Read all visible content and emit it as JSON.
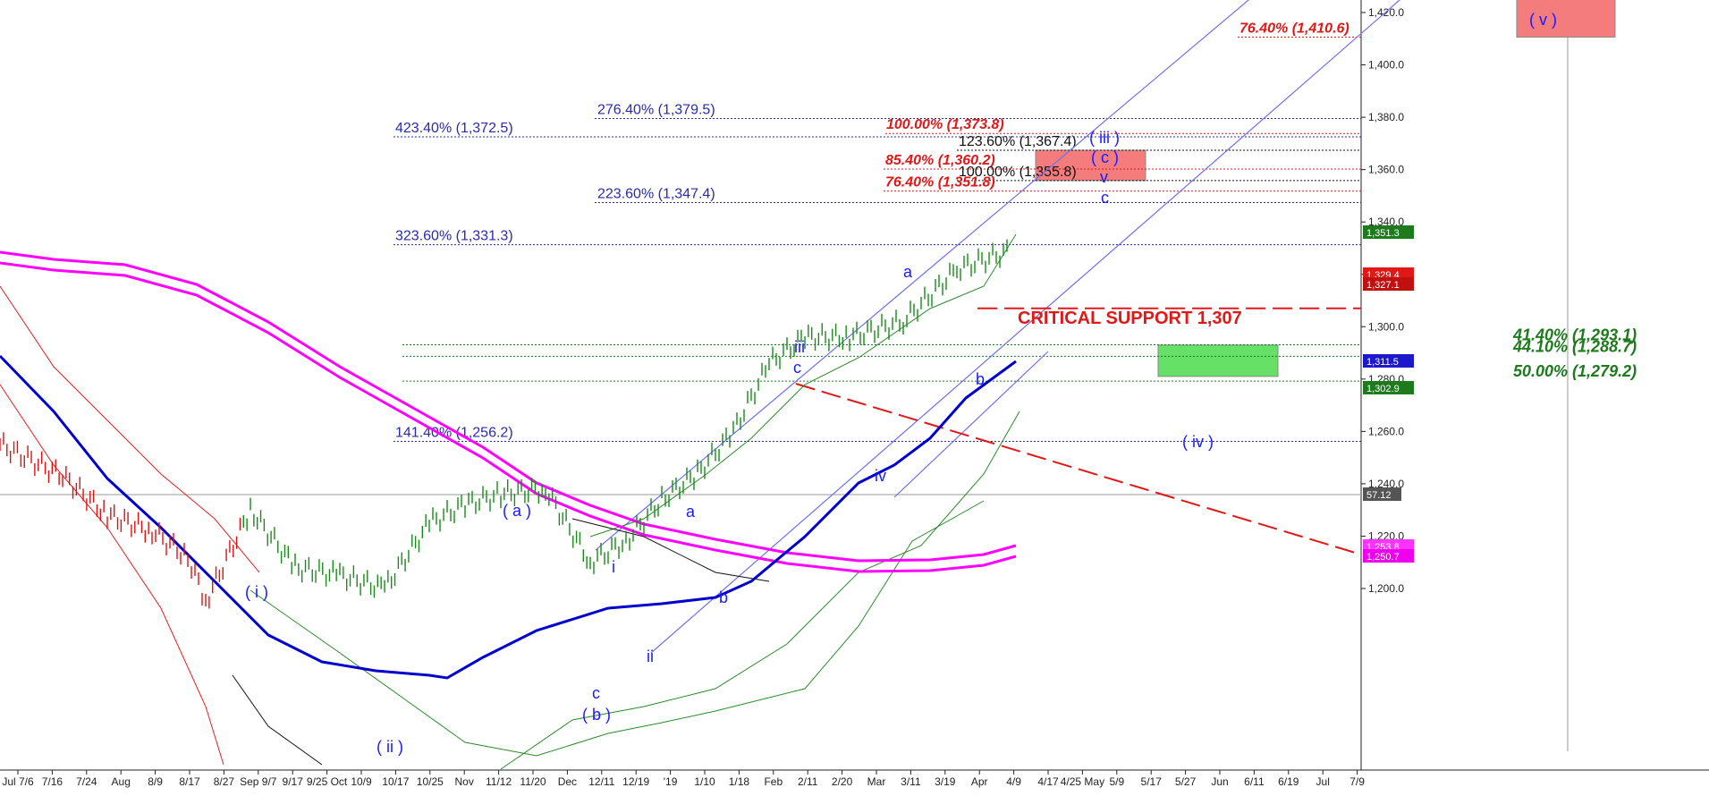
{
  "chart_data": {
    "type": "line",
    "title": "",
    "xlabel": "",
    "ylabel": "",
    "ylim": [
      1180,
      1425
    ],
    "x_ticks": [
      "Jul 7/6",
      "7/16",
      "7/24",
      "Aug",
      "8/9",
      "8/17",
      "8/27",
      "Sep 9/7",
      "9/17",
      "9/25 Oct",
      "10/9",
      "10/17",
      "10/25",
      "Nov",
      "11/12",
      "11/20",
      "Dec",
      "12/11",
      "12/19",
      "'19",
      "1/10",
      "1/18",
      "Feb",
      "2/11",
      "2/20",
      "Mar",
      "3/11",
      "3/19",
      "Apr",
      "4/9",
      "4/17",
      "4/25 May",
      "5/9",
      "5/17",
      "5/27",
      "Jun",
      "6/11",
      "6/19",
      "Jul",
      "7/9"
    ],
    "y_ticks": [
      "1,200.0",
      "1,220.0",
      "1,240.0",
      "1,260.0",
      "1,280.0",
      "1,300.0",
      "1,320.0",
      "1,340.0",
      "1,360.0",
      "1,380.0",
      "1,400.0",
      "1,420.0"
    ],
    "price_series": {
      "name": "",
      "color": "#1a8a1a",
      "x": [
        "7/6",
        "7/16",
        "7/24",
        "Aug",
        "8/9",
        "8/17",
        "8/27",
        "9/7",
        "9/17",
        "9/25",
        "10/9",
        "10/17",
        "10/25",
        "Nov",
        "11/12",
        "11/20",
        "Dec",
        "12/11",
        "12/19",
        "'19",
        "1/10",
        "1/18",
        "Feb",
        "2/11",
        "2/20"
      ],
      "values": [
        1255,
        1243,
        1228,
        1222,
        1212,
        1195,
        1230,
        1208,
        1205,
        1200,
        1225,
        1232,
        1236,
        1238,
        1210,
        1218,
        1234,
        1244,
        1260,
        1286,
        1296,
        1296,
        1302,
        1322,
        1329
      ]
    },
    "ma_series": [
      {
        "color": "#0000cc",
        "values": [
          1310,
          1270,
          1238,
          1220,
          1218,
          1222,
          1235,
          1248,
          1252,
          1258,
          1266,
          1272,
          1282,
          1298,
          1306,
          1312
        ]
      },
      {
        "color": "#ff00ff",
        "values": [
          1347,
          1345,
          1335,
          1310,
          1290,
          1275,
          1262,
          1255,
          1253,
          1253,
          1253,
          1253
        ]
      }
    ],
    "fib_levels": [
      {
        "label": "76.40% (1,410.6)",
        "value": 1410.6,
        "color": "#e01818"
      },
      {
        "label": "276.40% (1,379.5)",
        "value": 1379.5,
        "color": "#2a2ab0"
      },
      {
        "label": "100.00% (1,373.8)",
        "value": 1373.8,
        "color": "#e01818"
      },
      {
        "label": "423.40% (1,372.5)",
        "value": 1372.5,
        "color": "#2a2ab0"
      },
      {
        "label": "123.60% (1,367.4)",
        "value": 1367.4,
        "color": "#111111"
      },
      {
        "label": "85.40% (1,360.2)",
        "value": 1360.2,
        "color": "#e01818"
      },
      {
        "label": "100.00% (1,355.8)",
        "value": 1355.8,
        "color": "#111111"
      },
      {
        "label": "76.40% (1,351.8)",
        "value": 1351.8,
        "color": "#e01818"
      },
      {
        "label": "223.60% (1,347.4)",
        "value": 1347.4,
        "color": "#2a2ab0"
      },
      {
        "label": "323.60% (1,331.3)",
        "value": 1331.3,
        "color": "#2a2ab0"
      },
      {
        "label": "41.40% (1,293.1)",
        "value": 1293.1,
        "color": "#1d7a1d"
      },
      {
        "label": "44.10% (1,288.7)",
        "value": 1288.7,
        "color": "#1d7a1d"
      },
      {
        "label": "50.00% (1,279.2)",
        "value": 1279.2,
        "color": "#1d7a1d"
      },
      {
        "label": "141.40% (1,256.2)",
        "value": 1256.2,
        "color": "#2a2ab0"
      }
    ],
    "support": {
      "label": "CRITICAL SUPPORT 1,307",
      "value": 1307,
      "color": "#e01818"
    },
    "wave_labels": [
      "( v )",
      "( iii )",
      "( c )",
      "v",
      "c",
      "a",
      "iii",
      "c",
      "b",
      "iv",
      "( iv )",
      "( a )",
      "a",
      "i",
      "( i )",
      "c",
      "( b )",
      "ii",
      "b",
      "( ii )"
    ],
    "price_badges": [
      {
        "text": "1,351.3",
        "color": "#1d7a1d"
      },
      {
        "text": "1,329.4",
        "color": "#e01818"
      },
      {
        "text": "1,327.1",
        "color": "#c01010"
      },
      {
        "text": "1,311.5",
        "color": "#1a1acc"
      },
      {
        "text": "1,302.9",
        "color": "#1d7a1d"
      },
      {
        "text": "57.12",
        "color": "#555555"
      },
      {
        "text": "1,253.8",
        "color": "#ff33ff"
      },
      {
        "text": "1,250.7",
        "color": "#ee00ee"
      }
    ],
    "target_boxes": [
      {
        "label": "( v )",
        "y_range": [
          1410.6,
          1425
        ],
        "color": "#f47c7c"
      },
      {
        "label": "c",
        "y_range": [
          1355.8,
          1367.4
        ],
        "color": "#f47c7c"
      },
      {
        "label": "( iv )",
        "y_range": [
          1281,
          1293
        ],
        "color": "#66e066"
      }
    ],
    "grid": false,
    "legend": "none"
  }
}
